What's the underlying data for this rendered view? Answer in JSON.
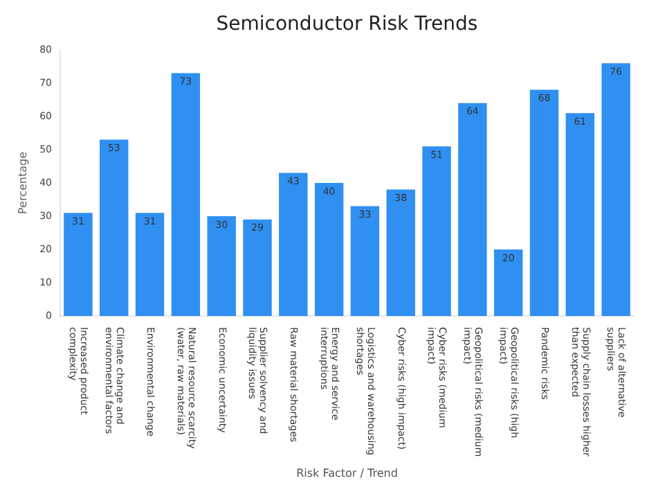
{
  "chart_data": {
    "type": "bar",
    "title": "Semiconductor Risk Trends",
    "xlabel": "Risk Factor / Trend",
    "ylabel": "Percentage",
    "categories": [
      "Increased product complexity",
      "Climate change and environmental factors",
      "Environmental change",
      "Natural resource scarcity (water, raw materials)",
      "Economic uncertainty",
      "Supplier solvency and liquidity issues",
      "Raw material shortages",
      "Energy and service interruptions",
      "Logistics and warehousing shortages",
      "Cyber risks (high impact)",
      "Cyber risks (medium impact)",
      "Geopolitical risks (medium impact)",
      "Geopolitical risks (high impact)",
      "Pandemic risks",
      "Supply chain losses higher than expected",
      "Lack of alternative suppliers"
    ],
    "values": [
      31,
      53,
      31,
      73,
      30,
      29,
      43,
      40,
      33,
      38,
      51,
      64,
      20,
      68,
      61,
      76
    ],
    "color": "#2f90f2",
    "ylim": [
      0,
      80
    ],
    "yticks": [
      0,
      10,
      20,
      30,
      40,
      50,
      60,
      70,
      80
    ],
    "grid": false,
    "data_labels": true
  }
}
